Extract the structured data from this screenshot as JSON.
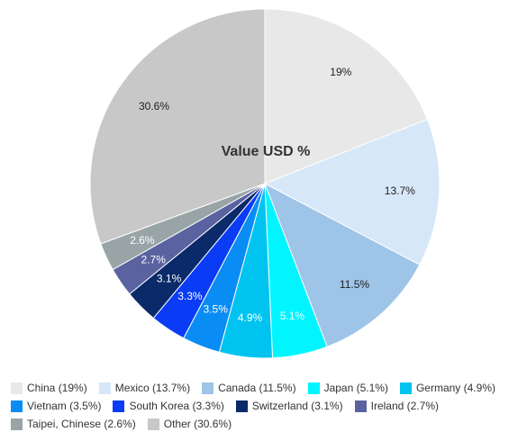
{
  "chart_data": {
    "type": "pie",
    "title": "Value USD %",
    "slices": [
      {
        "label": "China",
        "value": 19,
        "display": "19%",
        "legend": "China (19%)",
        "color": "#e8e8e8",
        "label_color": "#222222"
      },
      {
        "label": "Mexico",
        "value": 13.7,
        "display": "13.7%",
        "legend": "Mexico (13.7%)",
        "color": "#d6e7f8",
        "label_color": "#222222"
      },
      {
        "label": "Canada",
        "value": 11.5,
        "display": "11.5%",
        "legend": "Canada (11.5%)",
        "color": "#9ec4e8",
        "label_color": "#222222"
      },
      {
        "label": "Japan",
        "value": 5.1,
        "display": "5.1%",
        "legend": "Japan (5.1%)",
        "color": "#00f5ff",
        "label_color": "#ffffff"
      },
      {
        "label": "Germany",
        "value": 4.9,
        "display": "4.9%",
        "legend": "Germany (4.9%)",
        "color": "#00c3f0",
        "label_color": "#ffffff"
      },
      {
        "label": "Vietnam",
        "value": 3.5,
        "display": "3.5%",
        "legend": "Vietnam (3.5%)",
        "color": "#0a8cf5",
        "label_color": "#ffffff"
      },
      {
        "label": "South Korea",
        "value": 3.3,
        "display": "3.3%",
        "legend": "South Korea (3.3%)",
        "color": "#0a3cf5",
        "label_color": "#ffffff"
      },
      {
        "label": "Switzerland",
        "value": 3.1,
        "display": "3.1%",
        "legend": "Switzerland (3.1%)",
        "color": "#0a2a6a",
        "label_color": "#ffffff"
      },
      {
        "label": "Ireland",
        "value": 2.7,
        "display": "2.7%",
        "legend": "Ireland (2.7%)",
        "color": "#5a62a0",
        "label_color": "#ffffff"
      },
      {
        "label": "Taipei, Chinese",
        "value": 2.6,
        "display": "2.6%",
        "legend": "Taipei, Chinese (2.6%)",
        "color": "#98a4a6",
        "label_color": "#ffffff"
      },
      {
        "label": "Other",
        "value": 30.6,
        "display": "30.6%",
        "legend": "Other (30.6%)",
        "color": "#c8c8c8",
        "label_color": "#222222"
      }
    ],
    "legend_position": "bottom",
    "start_angle": "12 o'clock",
    "direction": "clockwise"
  }
}
